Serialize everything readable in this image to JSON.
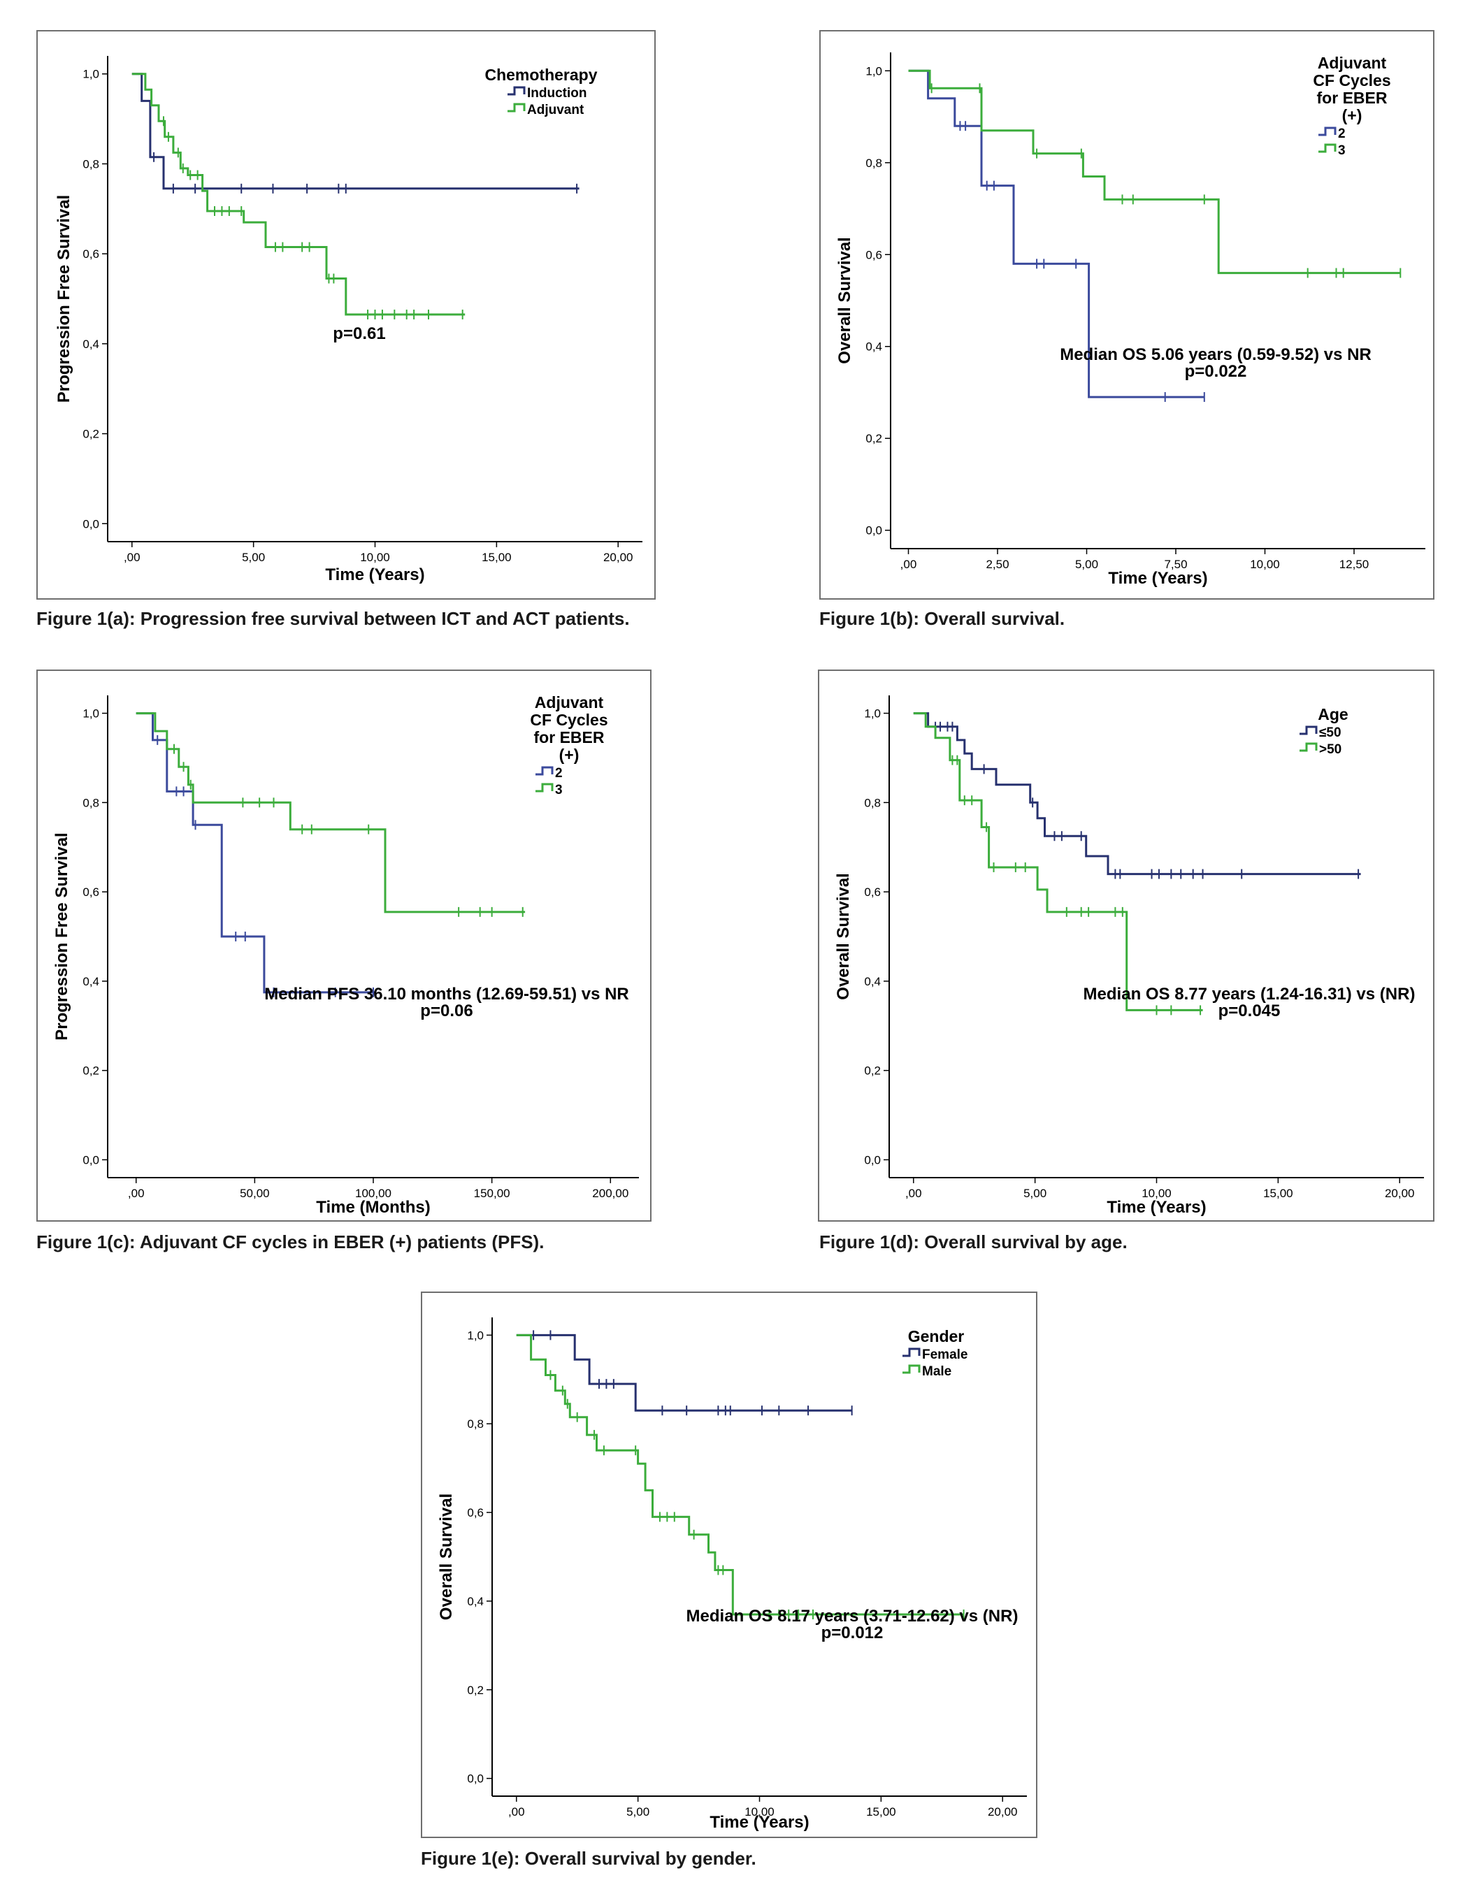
{
  "colors": {
    "navy": "#27316f",
    "blue": "#3b4a9c",
    "green": "#3cad3c",
    "axis": "#000000"
  },
  "captions": {
    "a": "Figure 1(a): Progression free survival between ICT and ACT patients.",
    "b": "Figure 1(b): Overall survival.",
    "c": "Figure 1(c): Adjuvant CF cycles in EBER (+) patients (PFS).",
    "d": "Figure 1(d): Overall survival by age.",
    "e": "Figure 1(e): Overall survival by gender."
  },
  "chart_data": [
    {
      "id": "a",
      "type": "line",
      "step": true,
      "xlabel": "Time (Years)",
      "ylabel": "Progression Free Survival",
      "xlim": [
        -1,
        21
      ],
      "ylim": [
        -0.04,
        1.04
      ],
      "xticks": [
        0,
        5,
        10,
        15,
        20
      ],
      "xtick_labels": [
        ",00",
        "5,00",
        "10,00",
        "15,00",
        "20,00"
      ],
      "yticks": [
        0,
        0.2,
        0.4,
        0.6,
        0.8,
        1.0
      ],
      "ytick_labels": [
        "0,0",
        "0,2",
        "0,4",
        "0,6",
        "0,8",
        "1,0"
      ],
      "legend": {
        "title": [
          "Chemotherapy"
        ],
        "position": "top-right"
      },
      "annotation": [
        "p=0.61"
      ],
      "series": [
        {
          "name": "Induction",
          "color": "navy",
          "x": [
            0,
            0.4,
            0.4,
            0.75,
            0.75,
            1.3,
            1.3,
            18.4
          ],
          "y": [
            1.0,
            1.0,
            0.94,
            0.94,
            0.815,
            0.815,
            0.745,
            0.745
          ],
          "censor_x": [
            0.9,
            1.7,
            2.6,
            4.5,
            5.8,
            7.2,
            8.5,
            8.8,
            18.3
          ]
        },
        {
          "name": "Adjuvant",
          "color": "green",
          "x": [
            0,
            0.55,
            0.55,
            0.8,
            0.8,
            1.1,
            1.1,
            1.35,
            1.35,
            1.7,
            1.7,
            2.0,
            2.0,
            2.3,
            2.3,
            2.9,
            2.9,
            3.1,
            3.1,
            4.6,
            4.6,
            5.5,
            5.5,
            8.0,
            8.0,
            8.8,
            8.8,
            13.7
          ],
          "y": [
            1.0,
            1.0,
            0.965,
            0.965,
            0.93,
            0.93,
            0.895,
            0.895,
            0.86,
            0.86,
            0.825,
            0.825,
            0.79,
            0.79,
            0.775,
            0.775,
            0.74,
            0.74,
            0.695,
            0.695,
            0.67,
            0.67,
            0.615,
            0.615,
            0.545,
            0.545,
            0.465,
            0.465
          ],
          "censor_x": [
            1.3,
            1.5,
            1.9,
            2.1,
            2.4,
            2.7,
            3.4,
            3.7,
            4.0,
            4.5,
            5.9,
            6.2,
            7.0,
            7.3,
            8.1,
            8.3,
            9.7,
            10.0,
            10.3,
            10.8,
            11.3,
            11.6,
            12.2,
            13.6
          ]
        }
      ]
    },
    {
      "id": "b",
      "type": "line",
      "step": true,
      "xlabel": "Time (Years)",
      "ylabel": "Overall Survival",
      "xlim": [
        -0.5,
        14.5
      ],
      "ylim": [
        -0.04,
        1.04
      ],
      "xticks": [
        0,
        2.5,
        5,
        7.5,
        10,
        12.5
      ],
      "xtick_labels": [
        ",00",
        "2,50",
        "5,00",
        "7,50",
        "10,00",
        "12,50"
      ],
      "yticks": [
        0,
        0.2,
        0.4,
        0.6,
        0.8,
        1.0
      ],
      "ytick_labels": [
        "0,0",
        "0,2",
        "0,4",
        "0,6",
        "0,8",
        "1,0"
      ],
      "legend": {
        "title": [
          "Adjuvant",
          "CF Cycles",
          "for EBER",
          "(+)"
        ],
        "position": "top-right"
      },
      "annotation": [
        "Median OS 5.06 years (0.59-9.52) vs NR",
        "p=0.022"
      ],
      "series": [
        {
          "name": "2",
          "color": "blue",
          "x": [
            0,
            0.55,
            0.55,
            1.3,
            1.3,
            2.05,
            2.05,
            2.95,
            2.95,
            5.06,
            5.06,
            8.3
          ],
          "y": [
            1.0,
            1.0,
            0.94,
            0.94,
            0.88,
            0.88,
            0.75,
            0.75,
            0.58,
            0.58,
            0.29,
            0.29
          ],
          "censor_x": [
            1.45,
            1.6,
            2.2,
            2.4,
            3.6,
            3.8,
            4.7,
            7.2,
            8.3
          ]
        },
        {
          "name": "3",
          "color": "green",
          "x": [
            0,
            0.6,
            0.6,
            2.05,
            2.05,
            3.5,
            3.5,
            4.9,
            4.9,
            5.5,
            5.5,
            8.7,
            8.7,
            13.8
          ],
          "y": [
            1.0,
            1.0,
            0.962,
            0.962,
            0.87,
            0.87,
            0.82,
            0.82,
            0.77,
            0.77,
            0.72,
            0.72,
            0.56,
            0.56
          ],
          "censor_x": [
            0.65,
            2.0,
            3.6,
            4.85,
            6.0,
            6.3,
            8.3,
            11.2,
            12.0,
            12.2,
            13.8
          ]
        }
      ]
    },
    {
      "id": "c",
      "type": "line",
      "step": true,
      "xlabel": "Time (Months)",
      "ylabel": "Progression Free Survival",
      "xlim": [
        -12,
        212
      ],
      "ylim": [
        -0.04,
        1.04
      ],
      "xticks": [
        0,
        50,
        100,
        150,
        200
      ],
      "xtick_labels": [
        ",00",
        "50,00",
        "100,00",
        "150,00",
        "200,00"
      ],
      "yticks": [
        0,
        0.2,
        0.4,
        0.6,
        0.8,
        1.0
      ],
      "ytick_labels": [
        "0,0",
        "0,2",
        "0,4",
        "0,6",
        "0,8",
        "1,0"
      ],
      "legend": {
        "title": [
          "Adjuvant",
          "CF Cycles",
          "for EBER",
          "(+)"
        ],
        "position": "top-right"
      },
      "annotation": [
        "Median PFS 36.10 months (12.69-59.51) vs NR",
        "p=0.06"
      ],
      "series": [
        {
          "name": "2",
          "color": "blue",
          "x": [
            0,
            7,
            7,
            13,
            13,
            24,
            24,
            36.1,
            36.1,
            54,
            54,
            101
          ],
          "y": [
            1.0,
            1.0,
            0.94,
            0.94,
            0.825,
            0.825,
            0.75,
            0.75,
            0.5,
            0.5,
            0.375,
            0.375
          ],
          "censor_x": [
            9,
            17,
            20,
            25,
            42,
            46,
            58,
            84,
            100
          ]
        },
        {
          "name": "3",
          "color": "green",
          "x": [
            0,
            8,
            8,
            13,
            13,
            18,
            18,
            22,
            22,
            24,
            24,
            65,
            65,
            105,
            105,
            164
          ],
          "y": [
            1.0,
            1.0,
            0.96,
            0.96,
            0.92,
            0.92,
            0.88,
            0.88,
            0.84,
            0.84,
            0.8,
            0.8,
            0.74,
            0.74,
            0.555,
            0.555
          ],
          "censor_x": [
            16,
            20,
            23,
            45,
            52,
            58,
            70,
            74,
            98,
            136,
            145,
            150,
            163
          ]
        }
      ]
    },
    {
      "id": "d",
      "type": "line",
      "step": true,
      "xlabel": "Time (Years)",
      "ylabel": "Overall Survival",
      "xlim": [
        -1,
        21
      ],
      "ylim": [
        -0.04,
        1.04
      ],
      "xticks": [
        0,
        5,
        10,
        15,
        20
      ],
      "xtick_labels": [
        ",00",
        "5,00",
        "10,00",
        "15,00",
        "20,00"
      ],
      "yticks": [
        0,
        0.2,
        0.4,
        0.6,
        0.8,
        1.0
      ],
      "ytick_labels": [
        "0,0",
        "0,2",
        "0,4",
        "0,6",
        "0,8",
        "1,0"
      ],
      "legend": {
        "title": [
          "Age"
        ],
        "position": "top-right"
      },
      "annotation": [
        "Median OS 8.77 years (1.24-16.31) vs (NR)",
        "p=0.045"
      ],
      "series": [
        {
          "name": "≤50",
          "color": "navy",
          "x": [
            0,
            0.6,
            0.6,
            1.8,
            1.8,
            2.1,
            2.1,
            2.4,
            2.4,
            3.4,
            3.4,
            4.8,
            4.8,
            5.1,
            5.1,
            5.4,
            5.4,
            7.1,
            7.1,
            8.0,
            8.0,
            8.2,
            8.2,
            18.4
          ],
          "y": [
            1.0,
            1.0,
            0.97,
            0.97,
            0.94,
            0.94,
            0.91,
            0.91,
            0.875,
            0.875,
            0.84,
            0.84,
            0.8,
            0.8,
            0.765,
            0.765,
            0.725,
            0.725,
            0.68,
            0.68,
            0.64,
            0.64,
            0.64,
            0.64
          ],
          "censor_x": [
            0.9,
            1.1,
            1.4,
            1.6,
            2.9,
            4.9,
            5.8,
            6.1,
            6.9,
            8.3,
            8.5,
            9.8,
            10.1,
            10.6,
            11.0,
            11.5,
            11.9,
            13.5,
            18.3
          ]
        },
        {
          "name": ">50",
          "color": "green",
          "x": [
            0,
            0.5,
            0.5,
            0.9,
            0.9,
            1.5,
            1.5,
            1.9,
            1.9,
            2.8,
            2.8,
            3.1,
            3.1,
            5.1,
            5.1,
            5.5,
            5.5,
            8.77,
            8.77,
            11.9
          ],
          "y": [
            1.0,
            1.0,
            0.97,
            0.97,
            0.945,
            0.945,
            0.895,
            0.895,
            0.805,
            0.805,
            0.745,
            0.745,
            0.655,
            0.655,
            0.605,
            0.605,
            0.555,
            0.555,
            0.335,
            0.335
          ],
          "censor_x": [
            1.6,
            1.8,
            2.1,
            2.4,
            3.0,
            3.3,
            4.2,
            4.6,
            6.3,
            6.9,
            7.2,
            8.3,
            8.6,
            10.0,
            10.6,
            11.8
          ]
        }
      ]
    },
    {
      "id": "e",
      "type": "line",
      "step": true,
      "xlabel": "Time (Years)",
      "ylabel": "Overall Survival",
      "xlim": [
        -1,
        21
      ],
      "ylim": [
        -0.04,
        1.04
      ],
      "xticks": [
        0,
        5,
        10,
        15,
        20
      ],
      "xtick_labels": [
        ",00",
        "5,00",
        "10,00",
        "15,00",
        "20,00"
      ],
      "yticks": [
        0,
        0.2,
        0.4,
        0.6,
        0.8,
        1.0
      ],
      "ytick_labels": [
        "0,0",
        "0,2",
        "0,4",
        "0,6",
        "0,8",
        "1,0"
      ],
      "legend": {
        "title": [
          "Gender"
        ],
        "position": "top-right"
      },
      "annotation": [
        "Median OS 8.17 years (3.71-12.62) vs (NR)",
        "p=0.012"
      ],
      "series": [
        {
          "name": "Female",
          "color": "navy",
          "x": [
            0,
            2.4,
            2.4,
            3.0,
            3.0,
            4.9,
            4.9,
            13.8
          ],
          "y": [
            1.0,
            1.0,
            0.945,
            0.945,
            0.89,
            0.89,
            0.83,
            0.83
          ],
          "censor_x": [
            0.7,
            1.4,
            3.4,
            3.7,
            4.0,
            6.0,
            7.0,
            8.3,
            8.6,
            8.8,
            10.1,
            10.8,
            12.0,
            13.8
          ]
        },
        {
          "name": "Male",
          "color": "green",
          "x": [
            0,
            0.6,
            0.6,
            1.2,
            1.2,
            1.6,
            1.6,
            2.0,
            2.0,
            2.2,
            2.2,
            2.9,
            2.9,
            3.3,
            3.3,
            5.0,
            5.0,
            5.3,
            5.3,
            5.6,
            5.6,
            7.1,
            7.1,
            7.9,
            7.9,
            8.17,
            8.17,
            8.9,
            8.9,
            18.4
          ],
          "y": [
            1.0,
            1.0,
            0.945,
            0.945,
            0.91,
            0.91,
            0.875,
            0.875,
            0.845,
            0.845,
            0.815,
            0.815,
            0.775,
            0.775,
            0.74,
            0.74,
            0.71,
            0.71,
            0.65,
            0.65,
            0.59,
            0.59,
            0.55,
            0.55,
            0.51,
            0.51,
            0.47,
            0.47,
            0.37,
            0.37
          ],
          "censor_x": [
            1.4,
            1.9,
            2.1,
            2.5,
            3.2,
            3.6,
            4.9,
            5.9,
            6.2,
            6.5,
            7.3,
            8.3,
            8.5,
            10.4,
            10.8,
            11.2,
            11.6,
            12.2,
            18.4
          ]
        }
      ]
    }
  ]
}
